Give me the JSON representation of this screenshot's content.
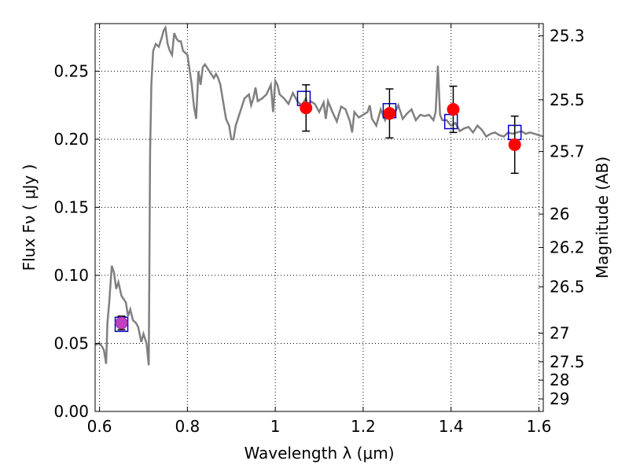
{
  "chart_data": {
    "type": "scatter",
    "xlabel": "Wavelength  λ (μm)",
    "ylabel": "Flux  Fν  ( μJy )",
    "ylabel_right": "Magnitude (AB)",
    "xlim": [
      0.59,
      1.61
    ],
    "ylim": [
      0.0,
      0.285
    ],
    "grid": true,
    "x_ticks": [
      0.6,
      0.8,
      1.0,
      1.2,
      1.4,
      1.6
    ],
    "x_tick_labels": [
      "0.6",
      "0.8",
      "1",
      "1.2",
      "1.4",
      "1.6"
    ],
    "y_ticks": [
      0.0,
      0.05,
      0.1,
      0.15,
      0.2,
      0.25
    ],
    "y_tick_labels": [
      "0.00",
      "0.05",
      "0.10",
      "0.15",
      "0.20",
      "0.25"
    ],
    "right_ticks": [
      {
        "label": "25.3",
        "flux": 0.276
      },
      {
        "label": "25.5",
        "flux": 0.229
      },
      {
        "label": "25.7",
        "flux": 0.191
      },
      {
        "label": "26",
        "flux": 0.145
      },
      {
        "label": "26.2",
        "flux": 0.1205
      },
      {
        "label": "26.5",
        "flux": 0.0915
      },
      {
        "label": "27",
        "flux": 0.0575
      },
      {
        "label": "27.5",
        "flux": 0.0365
      },
      {
        "label": "28",
        "flux": 0.023
      },
      {
        "label": "29",
        "flux": 0.0092
      }
    ],
    "series": [
      {
        "role": "model spectrum",
        "style": "line",
        "color": "#808080",
        "x": [
          0.59,
          0.6,
          0.605,
          0.61,
          0.615,
          0.618,
          0.622,
          0.628,
          0.633,
          0.638,
          0.643,
          0.65,
          0.66,
          0.665,
          0.67,
          0.676,
          0.683,
          0.688,
          0.695,
          0.7,
          0.707,
          0.712,
          0.715,
          0.718,
          0.722,
          0.728,
          0.735,
          0.742,
          0.746,
          0.75,
          0.755,
          0.76,
          0.765,
          0.77,
          0.775,
          0.78,
          0.785,
          0.79,
          0.8,
          0.81,
          0.815,
          0.82,
          0.825,
          0.83,
          0.835,
          0.84,
          0.85,
          0.86,
          0.865,
          0.87,
          0.875,
          0.88,
          0.888,
          0.895,
          0.9,
          0.905,
          0.91,
          0.92,
          0.93,
          0.94,
          0.945,
          0.95,
          0.955,
          0.96,
          0.97,
          0.98,
          0.99,
          0.995,
          1.0,
          1.005,
          1.01,
          1.02,
          1.03,
          1.04,
          1.05,
          1.06,
          1.07,
          1.075,
          1.08,
          1.09,
          1.1,
          1.11,
          1.115,
          1.12,
          1.13,
          1.14,
          1.15,
          1.16,
          1.17,
          1.175,
          1.18,
          1.19,
          1.2,
          1.21,
          1.215,
          1.22,
          1.23,
          1.24,
          1.25,
          1.26,
          1.27,
          1.28,
          1.29,
          1.3,
          1.31,
          1.32,
          1.33,
          1.34,
          1.35,
          1.36,
          1.365,
          1.37,
          1.375,
          1.38,
          1.39,
          1.4,
          1.41,
          1.42,
          1.43,
          1.44,
          1.45,
          1.46,
          1.47,
          1.48,
          1.49,
          1.5,
          1.51,
          1.52,
          1.53,
          1.54,
          1.55,
          1.56,
          1.57,
          1.58,
          1.59,
          1.6,
          1.61
        ],
        "y": [
          0.049,
          0.05,
          0.048,
          0.045,
          0.035,
          0.065,
          0.08,
          0.107,
          0.102,
          0.09,
          0.095,
          0.085,
          0.08,
          0.07,
          0.075,
          0.067,
          0.065,
          0.062,
          0.051,
          0.057,
          0.05,
          0.034,
          0.19,
          0.24,
          0.265,
          0.27,
          0.268,
          0.275,
          0.28,
          0.282,
          0.27,
          0.265,
          0.262,
          0.278,
          0.274,
          0.272,
          0.272,
          0.265,
          0.262,
          0.24,
          0.224,
          0.215,
          0.25,
          0.24,
          0.253,
          0.255,
          0.25,
          0.245,
          0.248,
          0.245,
          0.24,
          0.23,
          0.215,
          0.21,
          0.2,
          0.2,
          0.21,
          0.22,
          0.23,
          0.233,
          0.225,
          0.23,
          0.238,
          0.228,
          0.23,
          0.233,
          0.24,
          0.22,
          0.243,
          0.24,
          0.233,
          0.23,
          0.226,
          0.234,
          0.228,
          0.225,
          0.23,
          0.22,
          0.228,
          0.226,
          0.22,
          0.227,
          0.215,
          0.228,
          0.22,
          0.213,
          0.224,
          0.222,
          0.213,
          0.205,
          0.22,
          0.216,
          0.218,
          0.22,
          0.225,
          0.215,
          0.21,
          0.222,
          0.214,
          0.22,
          0.218,
          0.225,
          0.215,
          0.219,
          0.222,
          0.214,
          0.218,
          0.217,
          0.218,
          0.214,
          0.22,
          0.254,
          0.218,
          0.214,
          0.214,
          0.21,
          0.212,
          0.206,
          0.208,
          0.209,
          0.205,
          0.21,
          0.207,
          0.202,
          0.204,
          0.205,
          0.203,
          0.202,
          0.205,
          0.204,
          0.205,
          0.206,
          0.204,
          0.205,
          0.204,
          0.203,
          0.202
        ]
      },
      {
        "role": "observed photometry",
        "style": "points",
        "marker": "circle",
        "color": "#ff0000",
        "x": [
          0.65,
          1.07,
          1.26,
          1.405,
          1.545
        ],
        "y": [
          0.065,
          0.223,
          0.219,
          0.222,
          0.196
        ],
        "yerr": [
          0.005,
          0.017,
          0.018,
          0.017,
          0.021
        ]
      },
      {
        "role": "model photometry",
        "style": "points",
        "marker": "square",
        "color": "#0000cc",
        "x": [
          0.65,
          1.065,
          1.26,
          1.4,
          1.545
        ],
        "y": [
          0.064,
          0.23,
          0.221,
          0.213,
          0.205
        ]
      }
    ]
  }
}
